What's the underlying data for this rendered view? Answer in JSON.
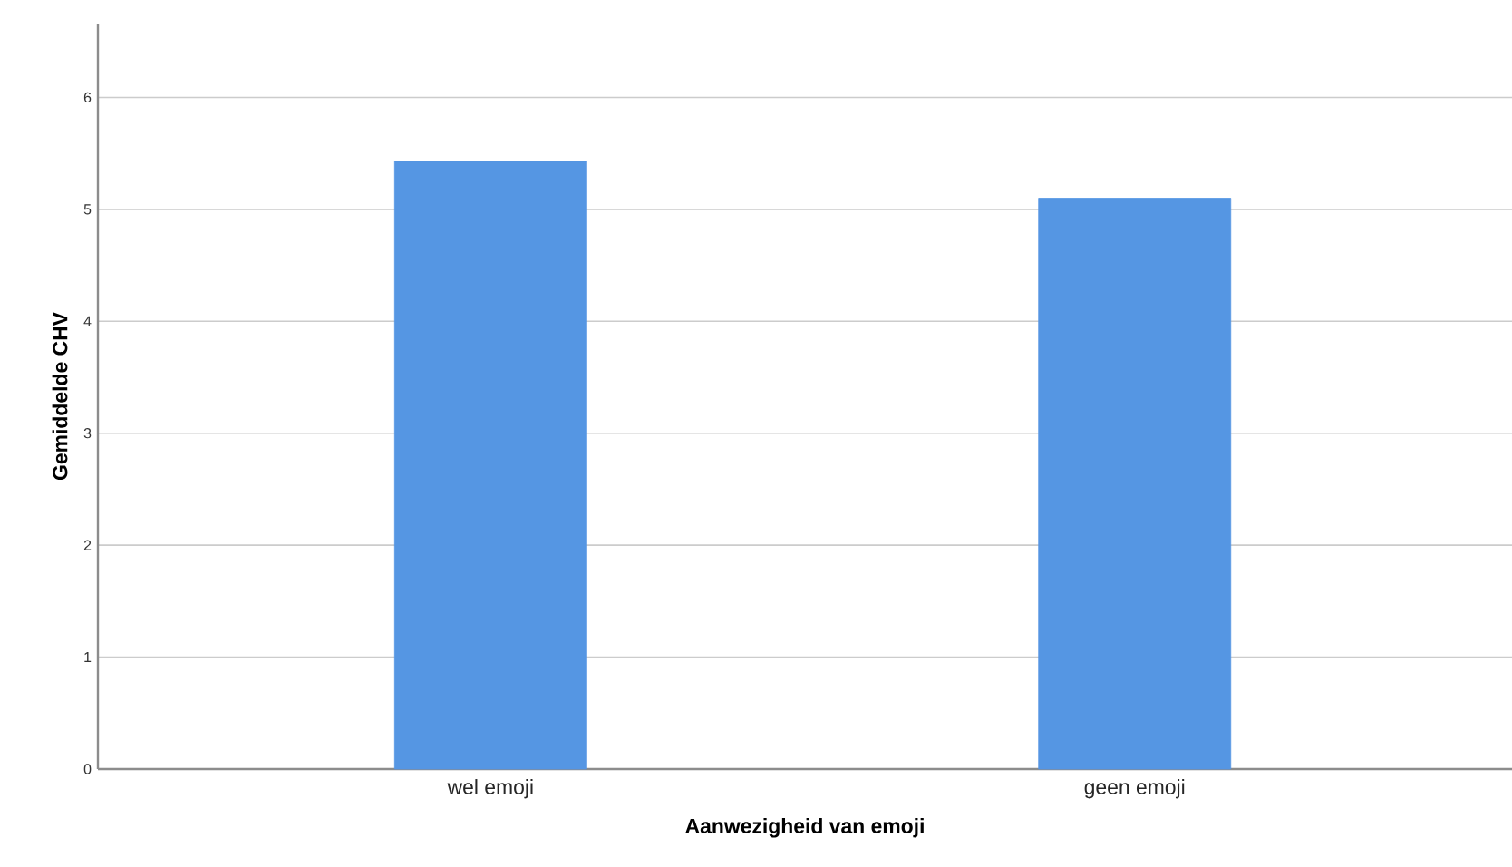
{
  "chart_data": {
    "type": "bar",
    "xlabel": "Aanwezigheid van emoji",
    "ylabel": "Gemiddelde CHV",
    "categories": [
      "wel emoji",
      "geen emoji"
    ],
    "values": [
      5.43,
      5.1
    ],
    "color": "#5596e3",
    "ylim": [
      0,
      6.66
    ],
    "yticks": [
      0,
      1,
      2,
      3,
      4,
      5,
      6
    ],
    "grid": "y"
  }
}
